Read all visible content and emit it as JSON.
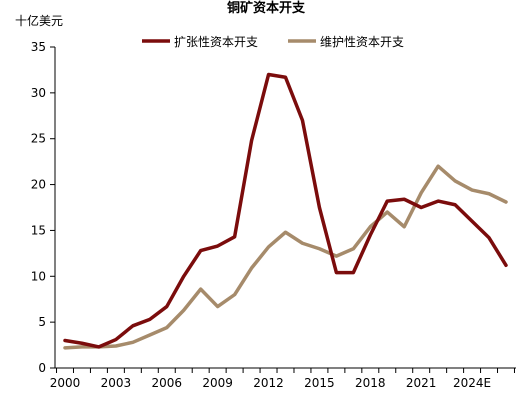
{
  "chart_data": {
    "type": "line",
    "title": "铜矿资本开支",
    "unit_label": "十亿美元",
    "ylim": [
      0,
      35
    ],
    "yticks": [
      0,
      5,
      10,
      15,
      20,
      25,
      30,
      35
    ],
    "x": [
      "2000",
      "2001",
      "2002",
      "2003",
      "2004",
      "2005",
      "2006",
      "2007",
      "2008",
      "2009",
      "2010",
      "2011",
      "2012",
      "2013",
      "2014",
      "2015",
      "2016",
      "2017",
      "2018",
      "2019",
      "2020",
      "2021",
      "2022",
      "2023",
      "2024E",
      "2025E",
      "2026E"
    ],
    "xticks": [
      "2000",
      "2003",
      "2006",
      "2009",
      "2012",
      "2015",
      "2018",
      "2021",
      "2024E"
    ],
    "grid": false,
    "legend_position": "top",
    "series": [
      {
        "name": "扩张性资本开支",
        "color": "#7b0c0c",
        "values": [
          3.0,
          2.7,
          2.3,
          3.1,
          4.6,
          5.3,
          6.7,
          10.0,
          12.8,
          13.3,
          14.3,
          24.8,
          32.0,
          31.7,
          27.0,
          17.5,
          10.4,
          10.4,
          14.5,
          18.2,
          18.4,
          17.5,
          18.2,
          17.8,
          16.0,
          14.2,
          11.2
        ]
      },
      {
        "name": "维护性资本开支",
        "color": "#a68b6b",
        "values": [
          2.2,
          2.3,
          2.3,
          2.4,
          2.8,
          3.6,
          4.4,
          6.3,
          8.6,
          6.7,
          8.0,
          10.9,
          13.2,
          14.8,
          13.6,
          13.0,
          12.2,
          13.0,
          15.4,
          17.0,
          15.4,
          19.1,
          22.0,
          20.4,
          19.4,
          19.0,
          18.1
        ]
      }
    ]
  }
}
